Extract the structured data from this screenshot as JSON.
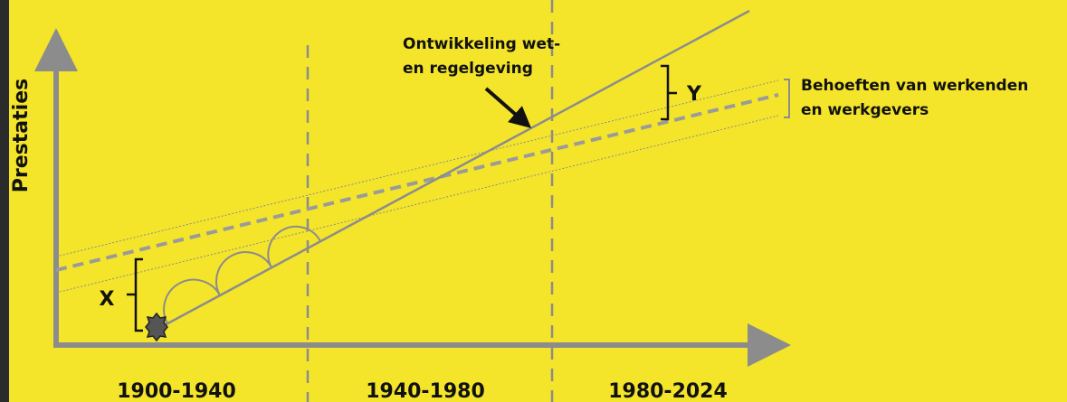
{
  "axis": {
    "y_label": "Prestaties"
  },
  "annotations": {
    "law": [
      "Ontwikkeling wet-",
      "en regelgeving"
    ],
    "needs": [
      "Behoeften van werkenden",
      "en werkgevers"
    ],
    "gap_start": "X",
    "gap_end": "Y"
  },
  "periods": [
    "1900-1940",
    "1940-1980",
    "1980-2024"
  ]
}
